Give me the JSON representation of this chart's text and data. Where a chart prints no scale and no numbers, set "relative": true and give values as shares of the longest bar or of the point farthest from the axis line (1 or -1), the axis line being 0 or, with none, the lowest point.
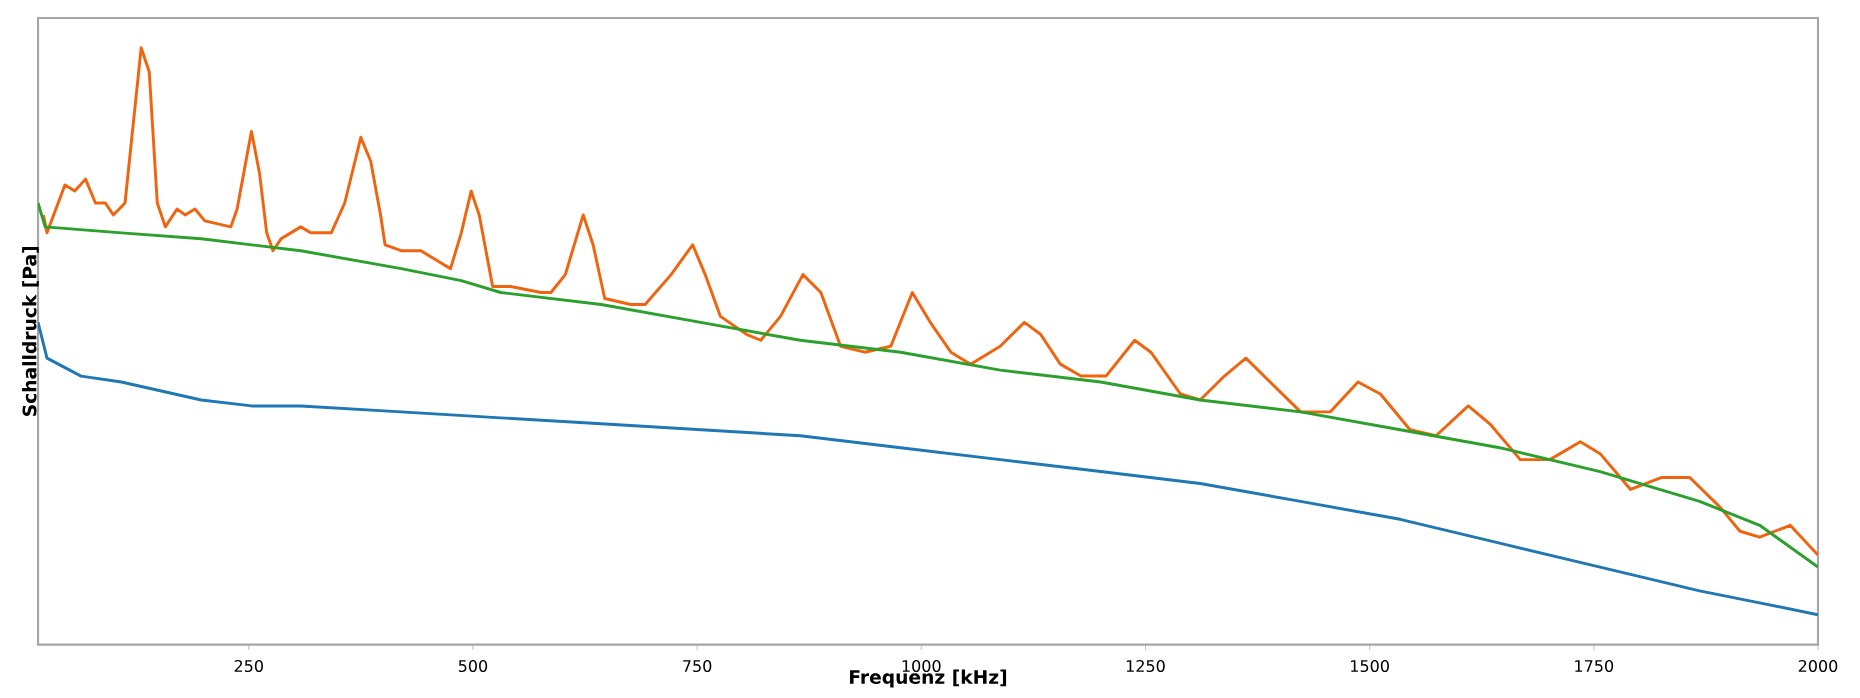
{
  "chart_data": {
    "type": "line",
    "relative": true,
    "xlabel": "Frequenz [kHz]",
    "ylabel": "Schalldruck [Pa]",
    "xlim": [
      15,
      2000
    ],
    "xticks": [
      250,
      500,
      750,
      1000,
      1250,
      1500,
      1750,
      2000
    ],
    "grid": false,
    "marker": "none",
    "line_style": "solid",
    "series": [
      {
        "color": "#f0640f",
        "x": [
          21,
          25,
          45,
          56,
          68,
          79,
          90,
          99,
          112,
          130,
          139,
          148,
          157,
          170,
          179,
          190,
          201,
          230,
          237,
          253,
          262,
          270,
          277,
          286,
          308,
          319,
          342,
          357,
          375,
          386,
          397,
          402,
          420,
          442,
          464,
          475,
          487,
          498,
          507,
          522,
          542,
          576,
          587,
          603,
          623,
          634,
          647,
          676,
          692,
          721,
          745,
          759,
          776,
          805,
          821,
          843,
          868,
          888,
          910,
          937,
          966,
          990,
          1010,
          1033,
          1055,
          1088,
          1115,
          1133,
          1155,
          1178,
          1206,
          1238,
          1256,
          1289,
          1311,
          1338,
          1362,
          1389,
          1423,
          1456,
          1487,
          1512,
          1545,
          1574,
          1610,
          1634,
          1668,
          1701,
          1735,
          1757,
          1791,
          1825,
          1857,
          1891,
          1913,
          1935,
          1969,
          2000
        ],
        "values": [
          0.72,
          0.69,
          0.77,
          0.76,
          0.78,
          0.74,
          0.74,
          0.72,
          0.74,
          1.0,
          0.96,
          0.74,
          0.7,
          0.73,
          0.72,
          0.73,
          0.71,
          0.7,
          0.73,
          0.86,
          0.79,
          0.69,
          0.66,
          0.68,
          0.7,
          0.69,
          0.69,
          0.74,
          0.85,
          0.81,
          0.72,
          0.67,
          0.66,
          0.66,
          0.64,
          0.63,
          0.69,
          0.76,
          0.72,
          0.6,
          0.6,
          0.59,
          0.59,
          0.62,
          0.72,
          0.67,
          0.58,
          0.57,
          0.57,
          0.62,
          0.67,
          0.62,
          0.55,
          0.52,
          0.51,
          0.55,
          0.62,
          0.59,
          0.5,
          0.49,
          0.5,
          0.59,
          0.54,
          0.49,
          0.47,
          0.5,
          0.54,
          0.52,
          0.47,
          0.45,
          0.45,
          0.51,
          0.49,
          0.42,
          0.41,
          0.45,
          0.48,
          0.44,
          0.39,
          0.39,
          0.44,
          0.42,
          0.36,
          0.35,
          0.4,
          0.37,
          0.31,
          0.31,
          0.34,
          0.32,
          0.26,
          0.28,
          0.28,
          0.23,
          0.19,
          0.18,
          0.2,
          0.15
        ]
      },
      {
        "color": "#2ca02c",
        "x": [
          15,
          23,
          108,
          197,
          308,
          420,
          487,
          531,
          643,
          754,
          865,
          977,
          1088,
          1200,
          1311,
          1423,
          1534,
          1645,
          1757,
          1868,
          1935,
          2000
        ],
        "values": [
          0.74,
          0.7,
          0.69,
          0.68,
          0.66,
          0.63,
          0.61,
          0.59,
          0.57,
          0.54,
          0.51,
          0.49,
          0.46,
          0.44,
          0.41,
          0.39,
          0.36,
          0.33,
          0.29,
          0.24,
          0.2,
          0.13
        ]
      },
      {
        "color": "#1f77b4",
        "x": [
          15,
          25,
          63,
          108,
          197,
          253,
          308,
          420,
          531,
          643,
          754,
          865,
          977,
          1088,
          1200,
          1311,
          1423,
          1534,
          1645,
          1757,
          1868,
          1935,
          2000
        ],
        "values": [
          0.54,
          0.48,
          0.45,
          0.44,
          0.41,
          0.4,
          0.4,
          0.39,
          0.38,
          0.37,
          0.36,
          0.35,
          0.33,
          0.31,
          0.29,
          0.27,
          0.24,
          0.21,
          0.17,
          0.13,
          0.09,
          0.07,
          0.05
        ]
      }
    ]
  }
}
